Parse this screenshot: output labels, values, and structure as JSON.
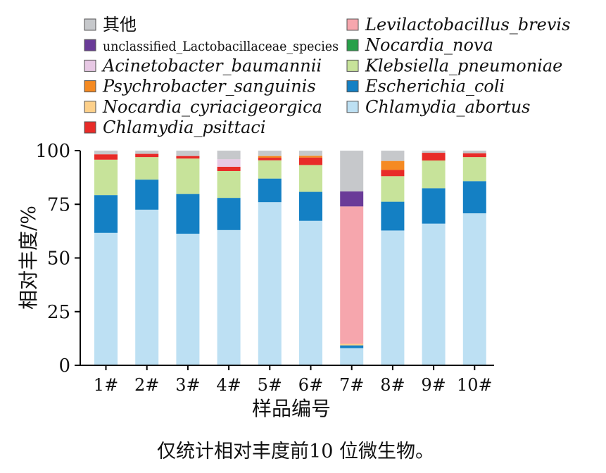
{
  "chart_data": {
    "type": "bar",
    "stacked": true,
    "title": "",
    "xlabel": "样品编号",
    "ylabel": "相对丰度/%",
    "ylim": [
      0,
      100
    ],
    "yticks": [
      "0",
      "25",
      "50",
      "75",
      "100"
    ],
    "categories": [
      "1#",
      "2#",
      "3#",
      "4#",
      "5#",
      "6#",
      "7#",
      "8#",
      "9#",
      "10#"
    ],
    "legend_position": "top",
    "series": [
      {
        "name": "Chlamydia_abortus",
        "color": "#bde0f3",
        "values": [
          61.7,
          72.5,
          61.3,
          63.0,
          76.0,
          67.3,
          8.0,
          62.8,
          66.0,
          70.8
        ]
      },
      {
        "name": "Escherichia_coli",
        "color": "#1480c4",
        "values": [
          17.6,
          14.0,
          18.5,
          15.0,
          11.0,
          13.5,
          1.3,
          13.4,
          16.5,
          15.0
        ]
      },
      {
        "name": "Nocardia_nova",
        "color": "#27a049",
        "values": [
          0,
          0,
          0,
          0,
          0,
          0,
          0,
          0,
          0,
          0
        ]
      },
      {
        "name": "Nocardia_cyriacigeorgica",
        "color": "#fdd08a",
        "values": [
          0,
          0,
          0,
          0,
          0,
          0,
          0.7,
          0,
          0,
          0
        ]
      },
      {
        "name": "Levilactobacillus_brevis",
        "color": "#f6a6ad",
        "values": [
          0,
          0,
          0,
          0,
          0,
          0,
          64.0,
          0,
          0,
          0
        ]
      },
      {
        "name": "Klebsiella_pneumoniae",
        "color": "#c7e39a",
        "values": [
          16.5,
          10.5,
          16.5,
          12.5,
          8.5,
          12.5,
          0,
          11.9,
          12.9,
          11.2
        ]
      },
      {
        "name": "Chlamydia_psittaci",
        "color": "#e82b28",
        "values": [
          2.5,
          1.5,
          1.2,
          2.0,
          1.2,
          3.5,
          0,
          2.9,
          3.6,
          1.8
        ]
      },
      {
        "name": "Psychrobacter_sanguinis",
        "color": "#f58a22",
        "values": [
          0,
          0,
          0,
          0,
          0.8,
          0.8,
          0,
          4.2,
          0,
          0
        ]
      },
      {
        "name": "Acinetobacter_baumannii",
        "color": "#e7c8e4",
        "values": [
          0,
          0,
          0,
          3.5,
          0,
          0,
          0,
          0,
          0,
          0
        ]
      },
      {
        "name": "unclassified_Lactobacillaceae_species",
        "color": "#6a3b98",
        "values": [
          0,
          0,
          0,
          0,
          0,
          0,
          7.0,
          0,
          0,
          0
        ]
      },
      {
        "name": "其他",
        "color": "#c6c8cb",
        "values": [
          1.7,
          1.5,
          2.5,
          4.0,
          2.5,
          2.4,
          19.0,
          4.8,
          1.0,
          1.2
        ]
      }
    ],
    "legend_left": [
      "其他",
      "unclassified_Lactobacillaceae_species",
      "Acinetobacter_baumannii",
      "Psychrobacter_sanguinis",
      "Nocardia_cyriacigeorgica",
      "Chlamydia_psittaci"
    ],
    "legend_right": [
      "Levilactobacillus_brevis",
      "Nocardia_nova",
      "Klebsiella_pneumoniae",
      "Escherichia_coli",
      "Chlamydia_abortus"
    ]
  },
  "footnote": "仅统计相对丰度前10 位微生物。"
}
